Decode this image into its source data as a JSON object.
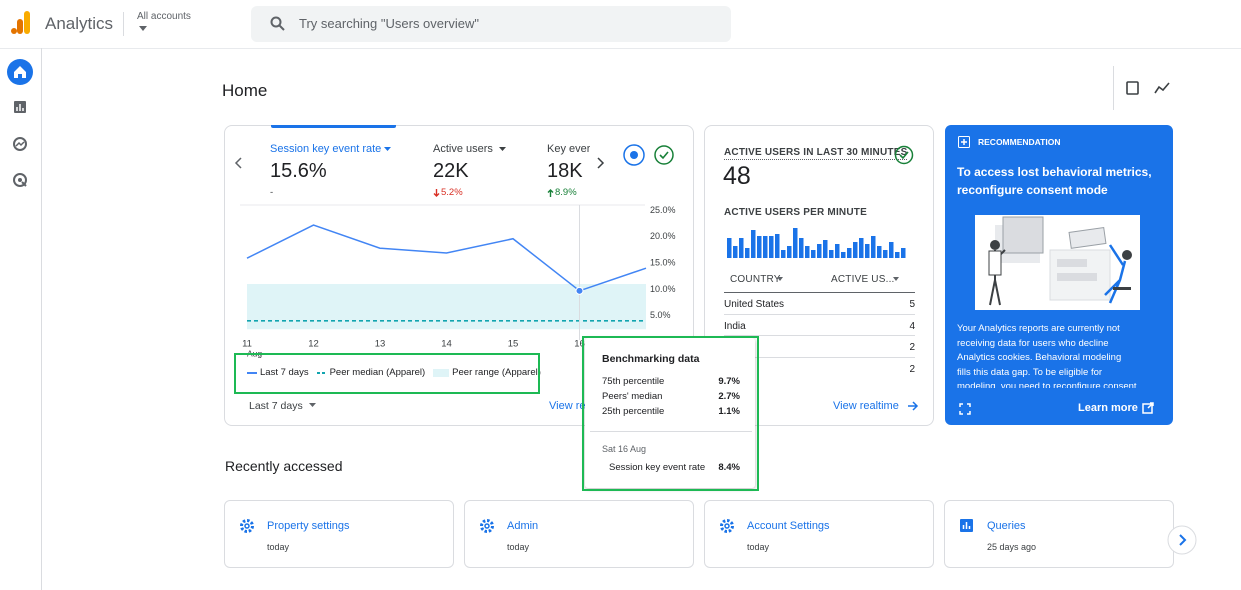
{
  "app": {
    "name": "Analytics",
    "account": "All accounts",
    "search_placeholder": "Try searching \"Users overview\""
  },
  "page_title": "Home",
  "metrics": [
    {
      "label": "Session key event rate",
      "value": "15.6%",
      "change": "-",
      "trend": "none"
    },
    {
      "label": "Active users",
      "value": "22K",
      "change": "5.2%",
      "trend": "down"
    },
    {
      "label": "Key ever",
      "value": "18K",
      "change": "8.9%",
      "trend": "up"
    }
  ],
  "chart_data": {
    "type": "line",
    "categories": [
      "11",
      "12",
      "13",
      "14",
      "15",
      "16",
      null
    ],
    "x_sublabel": "Aug",
    "series": [
      {
        "name": "Last 7 days",
        "color": "#4285f4",
        "values": [
          14.6,
          20.9,
          16.5,
          15.6,
          18.3,
          8.4,
          12.7
        ]
      },
      {
        "name": "Peer median (Apparel)",
        "color": "#12a4af",
        "style": "dashed",
        "values": [
          2.7,
          2.7,
          2.7,
          2.7,
          2.7,
          2.7,
          2.7
        ]
      },
      {
        "name": "Peer range (Apparel)",
        "color": "#dff4f7",
        "low": [
          1.1,
          1.1,
          1.1,
          1.1,
          1.1,
          1.1,
          1.1
        ],
        "high": [
          9.7,
          9.7,
          9.7,
          9.7,
          9.7,
          9.7,
          9.7
        ]
      }
    ],
    "ylim": [
      0,
      25
    ],
    "yticks": [
      {
        "value": 5,
        "label": "5.0%"
      },
      {
        "value": 10,
        "label": "10.0%"
      },
      {
        "value": 15,
        "label": "15.0%"
      },
      {
        "value": 20,
        "label": "20.0%"
      },
      {
        "value": 25,
        "label": "25.0%"
      }
    ],
    "grid": false,
    "highlight_index": 5
  },
  "metrics_footer": {
    "range": "Last 7 days",
    "link": "View re"
  },
  "tooltip": {
    "title": "Benchmarking data",
    "rows": [
      {
        "label": "75th percentile",
        "value": "9.7%"
      },
      {
        "label": "Peers' median",
        "value": "2.7%"
      },
      {
        "label": "25th percentile",
        "value": "1.1%"
      }
    ],
    "date": "Sat 16 Aug",
    "metric": "Session key event rate",
    "metric_value": "8.4%"
  },
  "realtime": {
    "title": "ACTIVE USERS IN LAST 30 MINUTES",
    "value": "48",
    "per_minute_title": "ACTIVE USERS PER MINUTE",
    "bars": [
      10,
      6,
      10,
      5,
      14,
      11,
      11,
      11,
      12,
      4,
      6,
      15,
      10,
      6,
      4,
      7,
      9,
      4,
      7,
      3,
      5,
      8,
      10,
      7,
      11,
      6,
      4,
      8,
      3,
      5
    ],
    "bar_color": "#1a73e8",
    "col_country": "COUNTRY",
    "col_users": "ACTIVE US...",
    "rows": [
      {
        "country": "United States",
        "users": 5
      },
      {
        "country": "India",
        "users": 4
      },
      {
        "country": null,
        "users": 2
      },
      {
        "country": null,
        "users": 2
      }
    ],
    "link": "View realtime"
  },
  "recommendation": {
    "label": "RECOMMENDATION",
    "title": "To access lost behavioral metrics, reconfigure consent mode",
    "body": "Your Analytics reports are currently not receiving data for users who decline Analytics cookies. Behavioral modeling fills this data gap. To be eligible for modeling, you need to reconfigure consent mode to ensure that",
    "link": "Learn more"
  },
  "recent": {
    "title": "Recently accessed",
    "items": [
      {
        "title": "Property settings",
        "time": "today"
      },
      {
        "title": "Admin",
        "time": "today"
      },
      {
        "title": "Account Settings",
        "time": "today"
      },
      {
        "title": "Queries",
        "time": "25 days ago"
      }
    ]
  }
}
